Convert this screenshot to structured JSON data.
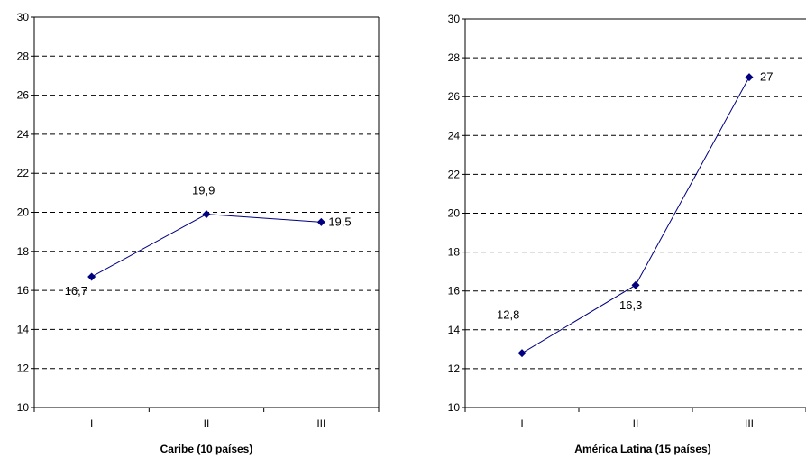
{
  "chart_data": [
    {
      "type": "line",
      "title": "",
      "xlabel": "Caribe (10 países)",
      "ylabel": "",
      "categories": [
        "I",
        "II",
        "III"
      ],
      "series": [
        {
          "values": [
            16.7,
            19.9,
            19.5
          ],
          "labels": [
            "16,7",
            "19,9",
            "19,5"
          ],
          "color": "#000080"
        }
      ],
      "ylim": [
        10,
        30
      ],
      "yticks": [
        10,
        12,
        14,
        16,
        18,
        20,
        22,
        24,
        26,
        28,
        30
      ],
      "grid": "horizontal-dashed",
      "legend": "none"
    },
    {
      "type": "line",
      "title": "",
      "xlabel": "América Latina (15 países)",
      "ylabel": "",
      "categories": [
        "I",
        "II",
        "III"
      ],
      "series": [
        {
          "values": [
            12.8,
            16.3,
            27
          ],
          "labels": [
            "12,8",
            "16,3",
            "27"
          ],
          "color": "#000080"
        }
      ],
      "ylim": [
        10,
        30
      ],
      "yticks": [
        10,
        12,
        14,
        16,
        18,
        20,
        22,
        24,
        26,
        28,
        30
      ],
      "grid": "horizontal-dashed",
      "legend": "none"
    }
  ]
}
